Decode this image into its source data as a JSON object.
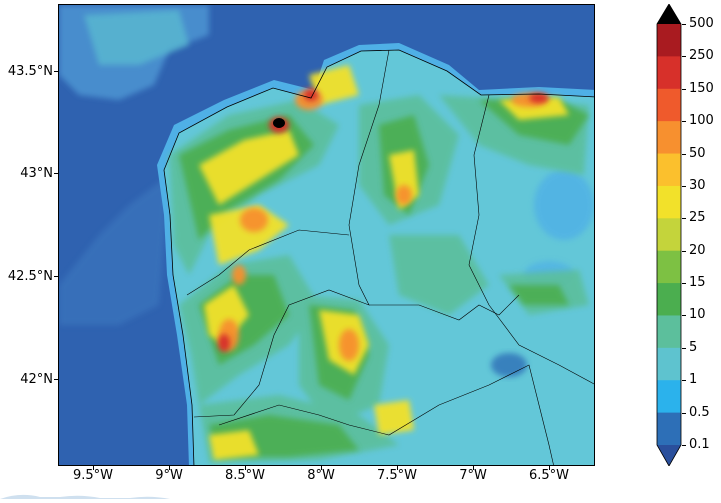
{
  "map": {
    "y_ticks": [
      "43.5°N",
      "43°N",
      "42.5°N",
      "42°N"
    ],
    "x_ticks": [
      "9.5°W",
      "9°W",
      "8.5°W",
      "8°W",
      "7.5°W",
      "7°W",
      "6.5°W"
    ]
  },
  "colorbar": {
    "levels": [
      "500",
      "250",
      "150",
      "100",
      "50",
      "30",
      "25",
      "20",
      "15",
      "10",
      "5",
      "1",
      "0.5",
      "0.1"
    ],
    "colors_top_to_bottom": [
      "#a91b20",
      "#d7302a",
      "#ef5a2c",
      "#f7902f",
      "#fbc02d",
      "#f2e12a",
      "#c4d43b",
      "#7dc143",
      "#4bae4f",
      "#5cbf9c",
      "#5ec3cf",
      "#2bb2ec",
      "#2d6fb7"
    ],
    "extend_top_color": "#000000",
    "extend_bottom_color": "#2a4f9c"
  },
  "colors": {
    "ocean": "#2f62b0",
    "land_base": "#63c7d8",
    "coast_glow": "#4fb0e6"
  }
}
